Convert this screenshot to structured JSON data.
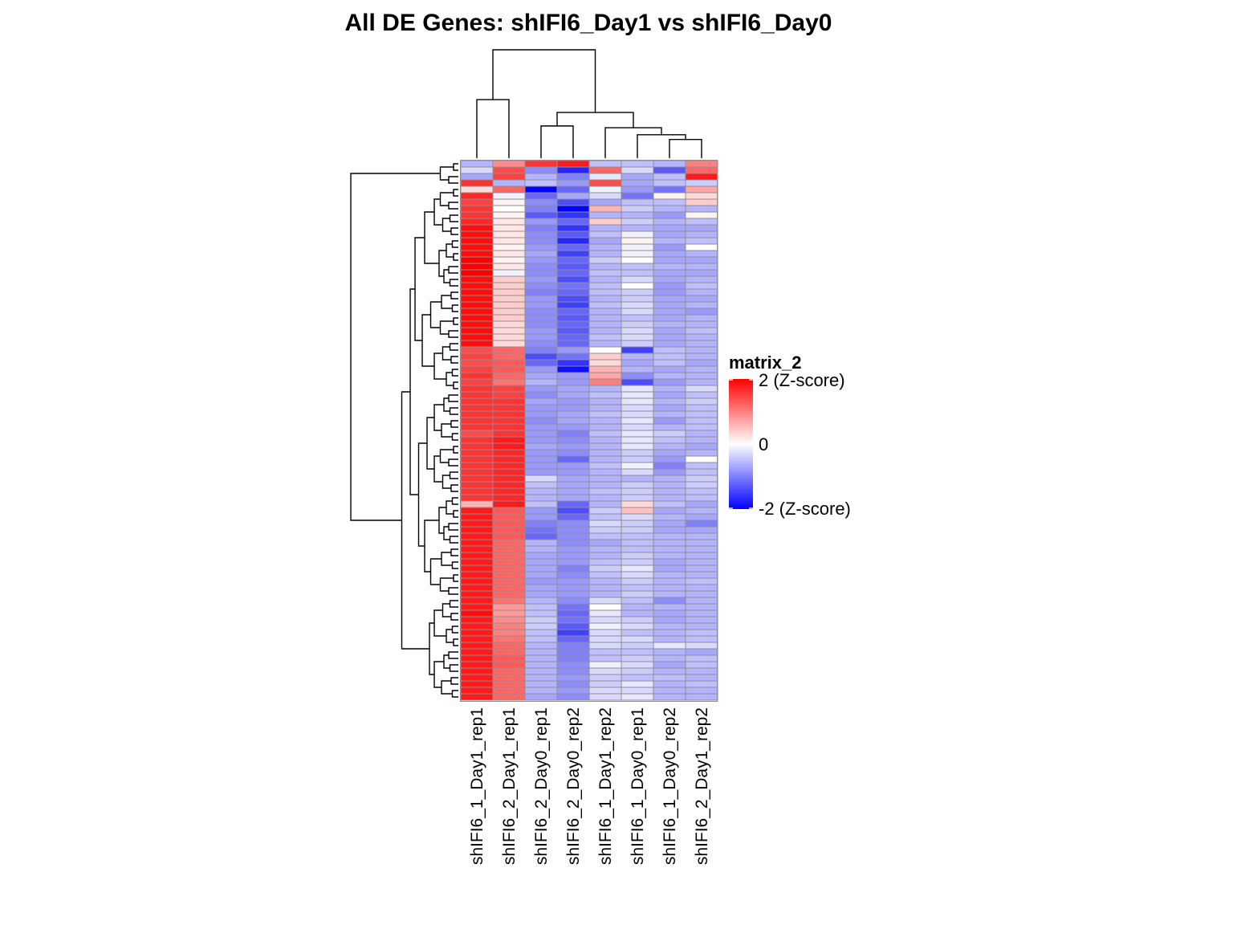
{
  "chart_data": {
    "type": "heatmap",
    "title": "All DE Genes: shIFI6_Day1  vs  shIFI6_Day0",
    "columns": [
      "shIFI6_1_Day1_rep1",
      "shIFI6_2_Day1_rep1",
      "shIFI6_2_Day0_rep1",
      "shIFI6_2_Day0_rep2",
      "shIFI6_1_Day1_rep2",
      "shIFI6_1_Day0_rep1",
      "shIFI6_1_Day0_rep2",
      "shIFI6_2_Day1_rep2"
    ],
    "n_rows": 84,
    "value_range": [
      -2,
      2
    ],
    "legend": {
      "title": "matrix_2",
      "ticks": [
        {
          "value": 2,
          "label": "2 (Z-score)"
        },
        {
          "value": 0,
          "label": "0"
        },
        {
          "value": -2,
          "label": "-2 (Z-score)"
        }
      ],
      "colors": {
        "low": "#0000ff",
        "mid": "#ffffff",
        "high": "#ff0000"
      }
    },
    "column_dendrogram": [
      [
        0,
        1,
        1.0
      ],
      [
        2,
        3,
        0.55
      ],
      [
        6,
        7,
        0.32
      ],
      [
        5,
        10,
        0.4
      ],
      [
        4,
        11,
        0.52
      ],
      [
        9,
        12,
        0.78
      ],
      [
        8,
        13,
        1.85
      ]
    ],
    "values": [
      [
        -0.6,
        0.9,
        1.6,
        1.8,
        -0.5,
        -0.5,
        -0.6,
        1.0
      ],
      [
        -0.3,
        1.4,
        -0.9,
        -1.7,
        1.2,
        -0.3,
        -1.3,
        1.2
      ],
      [
        -0.7,
        1.5,
        -0.6,
        -1.0,
        -0.2,
        -0.7,
        -0.5,
        1.8
      ],
      [
        1.6,
        -0.6,
        -0.5,
        -0.8,
        1.4,
        -0.7,
        -0.5,
        -0.4
      ],
      [
        0.3,
        1.2,
        -2.0,
        -1.2,
        -0.1,
        -0.8,
        -1.1,
        0.7
      ],
      [
        1.7,
        -0.1,
        -1.2,
        -0.7,
        -0.3,
        -1.1,
        0.1,
        0.3
      ],
      [
        1.5,
        0.1,
        -0.9,
        -1.4,
        -0.7,
        -0.5,
        -0.5,
        0.4
      ],
      [
        1.6,
        0.0,
        -1.0,
        -2.0,
        0.6,
        -0.4,
        -0.6,
        -0.6
      ],
      [
        1.6,
        0.1,
        -1.3,
        -1.6,
        -0.6,
        -0.6,
        -0.8,
        0.1
      ],
      [
        1.7,
        0.2,
        -0.8,
        -1.2,
        0.4,
        -0.4,
        -0.6,
        -0.5
      ],
      [
        1.9,
        0.2,
        -1.0,
        -1.6,
        -0.6,
        -0.6,
        -0.7,
        -0.7
      ],
      [
        1.9,
        0.2,
        -0.9,
        -1.3,
        -0.5,
        -0.1,
        -0.7,
        -0.6
      ],
      [
        1.9,
        0.2,
        -0.9,
        -1.7,
        -0.7,
        0.1,
        -0.6,
        -0.5
      ],
      [
        1.9,
        0.1,
        -0.8,
        -1.2,
        -0.6,
        -0.1,
        -0.8,
        0.0
      ],
      [
        1.9,
        0.2,
        -0.7,
        -1.5,
        -0.6,
        -0.1,
        -0.7,
        -0.6
      ],
      [
        2.0,
        0.1,
        -0.8,
        -1.2,
        -0.4,
        0.0,
        -0.7,
        -0.7
      ],
      [
        2.0,
        0.2,
        -0.9,
        -1.3,
        -0.6,
        -0.5,
        -0.6,
        -0.6
      ],
      [
        2.0,
        -0.1,
        -0.9,
        -1.2,
        -0.5,
        -0.5,
        -0.7,
        -0.7
      ],
      [
        1.9,
        0.4,
        -0.8,
        -1.4,
        -0.6,
        -0.3,
        -0.7,
        -0.6
      ],
      [
        1.9,
        0.4,
        -0.9,
        -1.1,
        -0.5,
        0.0,
        -0.8,
        -0.5
      ],
      [
        1.9,
        0.4,
        -1.0,
        -1.2,
        -0.5,
        -0.4,
        -0.8,
        -0.6
      ],
      [
        1.9,
        0.4,
        -0.8,
        -1.4,
        -0.6,
        -0.4,
        -0.7,
        -0.7
      ],
      [
        1.9,
        0.4,
        -0.8,
        -1.5,
        -0.5,
        -0.3,
        -0.7,
        -0.6
      ],
      [
        1.9,
        0.4,
        -0.9,
        -1.2,
        -0.6,
        -0.3,
        -0.7,
        -0.8
      ],
      [
        1.9,
        0.4,
        -0.9,
        -1.3,
        -0.6,
        -0.5,
        -0.7,
        -0.6
      ],
      [
        1.9,
        0.3,
        -0.9,
        -1.2,
        -0.6,
        -0.4,
        -0.6,
        -0.6
      ],
      [
        1.9,
        0.3,
        -0.8,
        -1.3,
        -0.6,
        -0.3,
        -0.7,
        -0.5
      ],
      [
        1.9,
        0.3,
        -0.8,
        -1.2,
        -0.5,
        -0.3,
        -0.7,
        -0.6
      ],
      [
        1.9,
        0.3,
        -0.9,
        -1.2,
        -0.6,
        -0.4,
        -0.7,
        -0.6
      ],
      [
        1.4,
        1.2,
        -1.0,
        -0.8,
        0.0,
        -1.5,
        -0.5,
        -0.6
      ],
      [
        1.5,
        1.2,
        -1.4,
        -1.1,
        0.4,
        -0.6,
        -0.5,
        -0.6
      ],
      [
        1.4,
        1.3,
        -1.2,
        -1.6,
        0.3,
        -0.7,
        -0.5,
        -0.7
      ],
      [
        1.5,
        1.3,
        -0.8,
        -1.9,
        0.6,
        -0.6,
        -0.7,
        -0.6
      ],
      [
        1.6,
        1.2,
        -0.7,
        -0.8,
        0.7,
        -0.9,
        -0.6,
        -0.6
      ],
      [
        1.5,
        1.1,
        -0.6,
        -0.8,
        1.0,
        -1.4,
        -0.8,
        -0.6
      ],
      [
        1.6,
        1.5,
        -0.8,
        -0.7,
        -0.6,
        -0.2,
        -0.6,
        -0.3
      ],
      [
        1.6,
        1.5,
        -0.9,
        -0.7,
        -0.5,
        -0.2,
        -0.7,
        -0.5
      ],
      [
        1.6,
        1.6,
        -0.7,
        -0.8,
        -0.6,
        -0.2,
        -0.6,
        -0.4
      ],
      [
        1.6,
        1.6,
        -0.8,
        -0.8,
        -0.6,
        -0.3,
        -0.7,
        -0.5
      ],
      [
        1.6,
        1.6,
        -0.8,
        -0.7,
        -0.5,
        -0.3,
        -0.6,
        -0.5
      ],
      [
        1.6,
        1.6,
        -0.9,
        -0.7,
        -0.6,
        -0.2,
        -0.8,
        -0.5
      ],
      [
        1.6,
        1.6,
        -0.8,
        -0.8,
        -0.6,
        -0.3,
        -0.6,
        -0.5
      ],
      [
        1.4,
        1.6,
        -0.8,
        -1.0,
        -0.5,
        -0.2,
        -0.4,
        -0.6
      ],
      [
        1.6,
        1.8,
        -0.8,
        -0.9,
        -0.6,
        -0.2,
        -0.5,
        -0.6
      ],
      [
        1.6,
        1.8,
        -0.7,
        -0.8,
        -0.6,
        -0.2,
        -0.6,
        -0.7
      ],
      [
        1.6,
        1.7,
        -0.8,
        -0.9,
        -0.6,
        -0.4,
        -0.7,
        -0.6
      ],
      [
        1.6,
        1.7,
        -0.8,
        -1.2,
        -0.6,
        -0.4,
        -0.8,
        0.0
      ],
      [
        1.6,
        1.7,
        -0.8,
        -0.8,
        -0.5,
        -0.1,
        -1.0,
        -0.5
      ],
      [
        1.6,
        1.7,
        -0.8,
        -0.8,
        -0.6,
        -0.3,
        -0.8,
        -0.5
      ],
      [
        1.6,
        1.7,
        -0.3,
        -0.7,
        -0.6,
        -0.6,
        -0.6,
        -0.4
      ],
      [
        1.6,
        1.7,
        -0.5,
        -0.7,
        -0.6,
        -0.4,
        -0.6,
        -0.4
      ],
      [
        1.6,
        1.7,
        -0.6,
        -0.7,
        -0.5,
        -0.4,
        -0.6,
        -0.5
      ],
      [
        1.6,
        1.7,
        -0.6,
        -0.7,
        -0.6,
        -0.4,
        -0.6,
        -0.5
      ],
      [
        0.6,
        1.8,
        -0.5,
        -1.2,
        -0.6,
        0.3,
        -0.5,
        -0.7
      ],
      [
        1.8,
        1.3,
        -0.8,
        -1.4,
        -0.4,
        0.5,
        -0.7,
        -0.6
      ],
      [
        1.8,
        1.3,
        -0.8,
        -1.2,
        -0.5,
        -0.3,
        -0.6,
        -0.7
      ],
      [
        1.8,
        1.3,
        -1.0,
        -0.9,
        -0.3,
        -0.4,
        -0.7,
        -1.0
      ],
      [
        1.8,
        1.3,
        -1.1,
        -0.9,
        -0.4,
        -0.4,
        -0.7,
        -0.7
      ],
      [
        1.8,
        1.3,
        -1.2,
        -0.9,
        -0.5,
        -0.5,
        -0.6,
        -0.6
      ],
      [
        1.8,
        1.2,
        -0.6,
        -0.9,
        -0.7,
        -0.5,
        -0.6,
        -0.6
      ],
      [
        1.8,
        1.2,
        -0.6,
        -0.8,
        -0.6,
        -0.5,
        -0.6,
        -0.6
      ],
      [
        1.8,
        1.2,
        -0.7,
        -0.8,
        -0.6,
        -0.4,
        -0.6,
        -0.6
      ],
      [
        1.8,
        1.2,
        -0.7,
        -0.8,
        -0.5,
        -0.4,
        -0.7,
        -0.6
      ],
      [
        1.8,
        1.2,
        -0.7,
        -1.0,
        -0.4,
        -0.2,
        -0.7,
        -0.6
      ],
      [
        1.8,
        1.2,
        -0.7,
        -0.9,
        -0.5,
        -0.3,
        -0.6,
        -0.6
      ],
      [
        1.8,
        1.2,
        -0.8,
        -0.8,
        -0.6,
        -0.4,
        -0.6,
        -0.5
      ],
      [
        1.8,
        1.2,
        -0.7,
        -0.8,
        -0.6,
        -0.5,
        -0.6,
        -0.6
      ],
      [
        1.8,
        1.2,
        -0.7,
        -0.8,
        -0.6,
        -0.4,
        -0.6,
        -0.6
      ],
      [
        1.8,
        1.1,
        -0.6,
        -0.9,
        -0.3,
        -0.5,
        -0.9,
        -0.6
      ],
      [
        1.8,
        0.8,
        -0.5,
        -1.1,
        0.0,
        -0.6,
        -0.6,
        -0.6
      ],
      [
        1.9,
        0.8,
        -0.5,
        -1.2,
        -0.2,
        -0.6,
        -0.7,
        -0.6
      ],
      [
        1.8,
        0.9,
        -0.4,
        -1.1,
        -0.3,
        -0.4,
        -0.7,
        -0.6
      ],
      [
        1.8,
        1.0,
        -0.4,
        -1.3,
        -0.1,
        -0.3,
        -0.6,
        -0.6
      ],
      [
        1.8,
        1.0,
        -0.5,
        -1.5,
        -0.3,
        -0.5,
        -0.6,
        -0.5
      ],
      [
        1.8,
        1.1,
        -0.5,
        -1.2,
        -0.3,
        -0.3,
        -0.6,
        -0.5
      ],
      [
        1.8,
        1.2,
        -0.6,
        -1.0,
        -0.3,
        -0.4,
        -0.2,
        -0.3
      ],
      [
        1.8,
        1.2,
        -0.6,
        -1.0,
        -0.5,
        -0.5,
        -0.6,
        -0.7
      ],
      [
        1.8,
        1.3,
        -0.6,
        -1.0,
        -0.5,
        -0.4,
        -0.6,
        -0.5
      ],
      [
        1.8,
        1.3,
        -0.6,
        -0.9,
        -0.1,
        -0.3,
        -0.7,
        -0.5
      ],
      [
        1.8,
        1.2,
        -0.6,
        -0.9,
        -0.3,
        -0.4,
        -0.6,
        -0.6
      ],
      [
        1.8,
        1.2,
        -0.6,
        -0.8,
        -0.4,
        -0.5,
        -0.5,
        -0.6
      ],
      [
        1.8,
        1.2,
        -0.6,
        -0.9,
        -0.4,
        -0.2,
        -0.6,
        -0.5
      ],
      [
        1.8,
        1.2,
        -0.6,
        -0.8,
        -0.3,
        -0.3,
        -0.6,
        -0.6
      ],
      [
        1.8,
        1.2,
        -0.7,
        -0.9,
        -0.3,
        -0.2,
        -0.6,
        -0.6
      ]
    ]
  }
}
